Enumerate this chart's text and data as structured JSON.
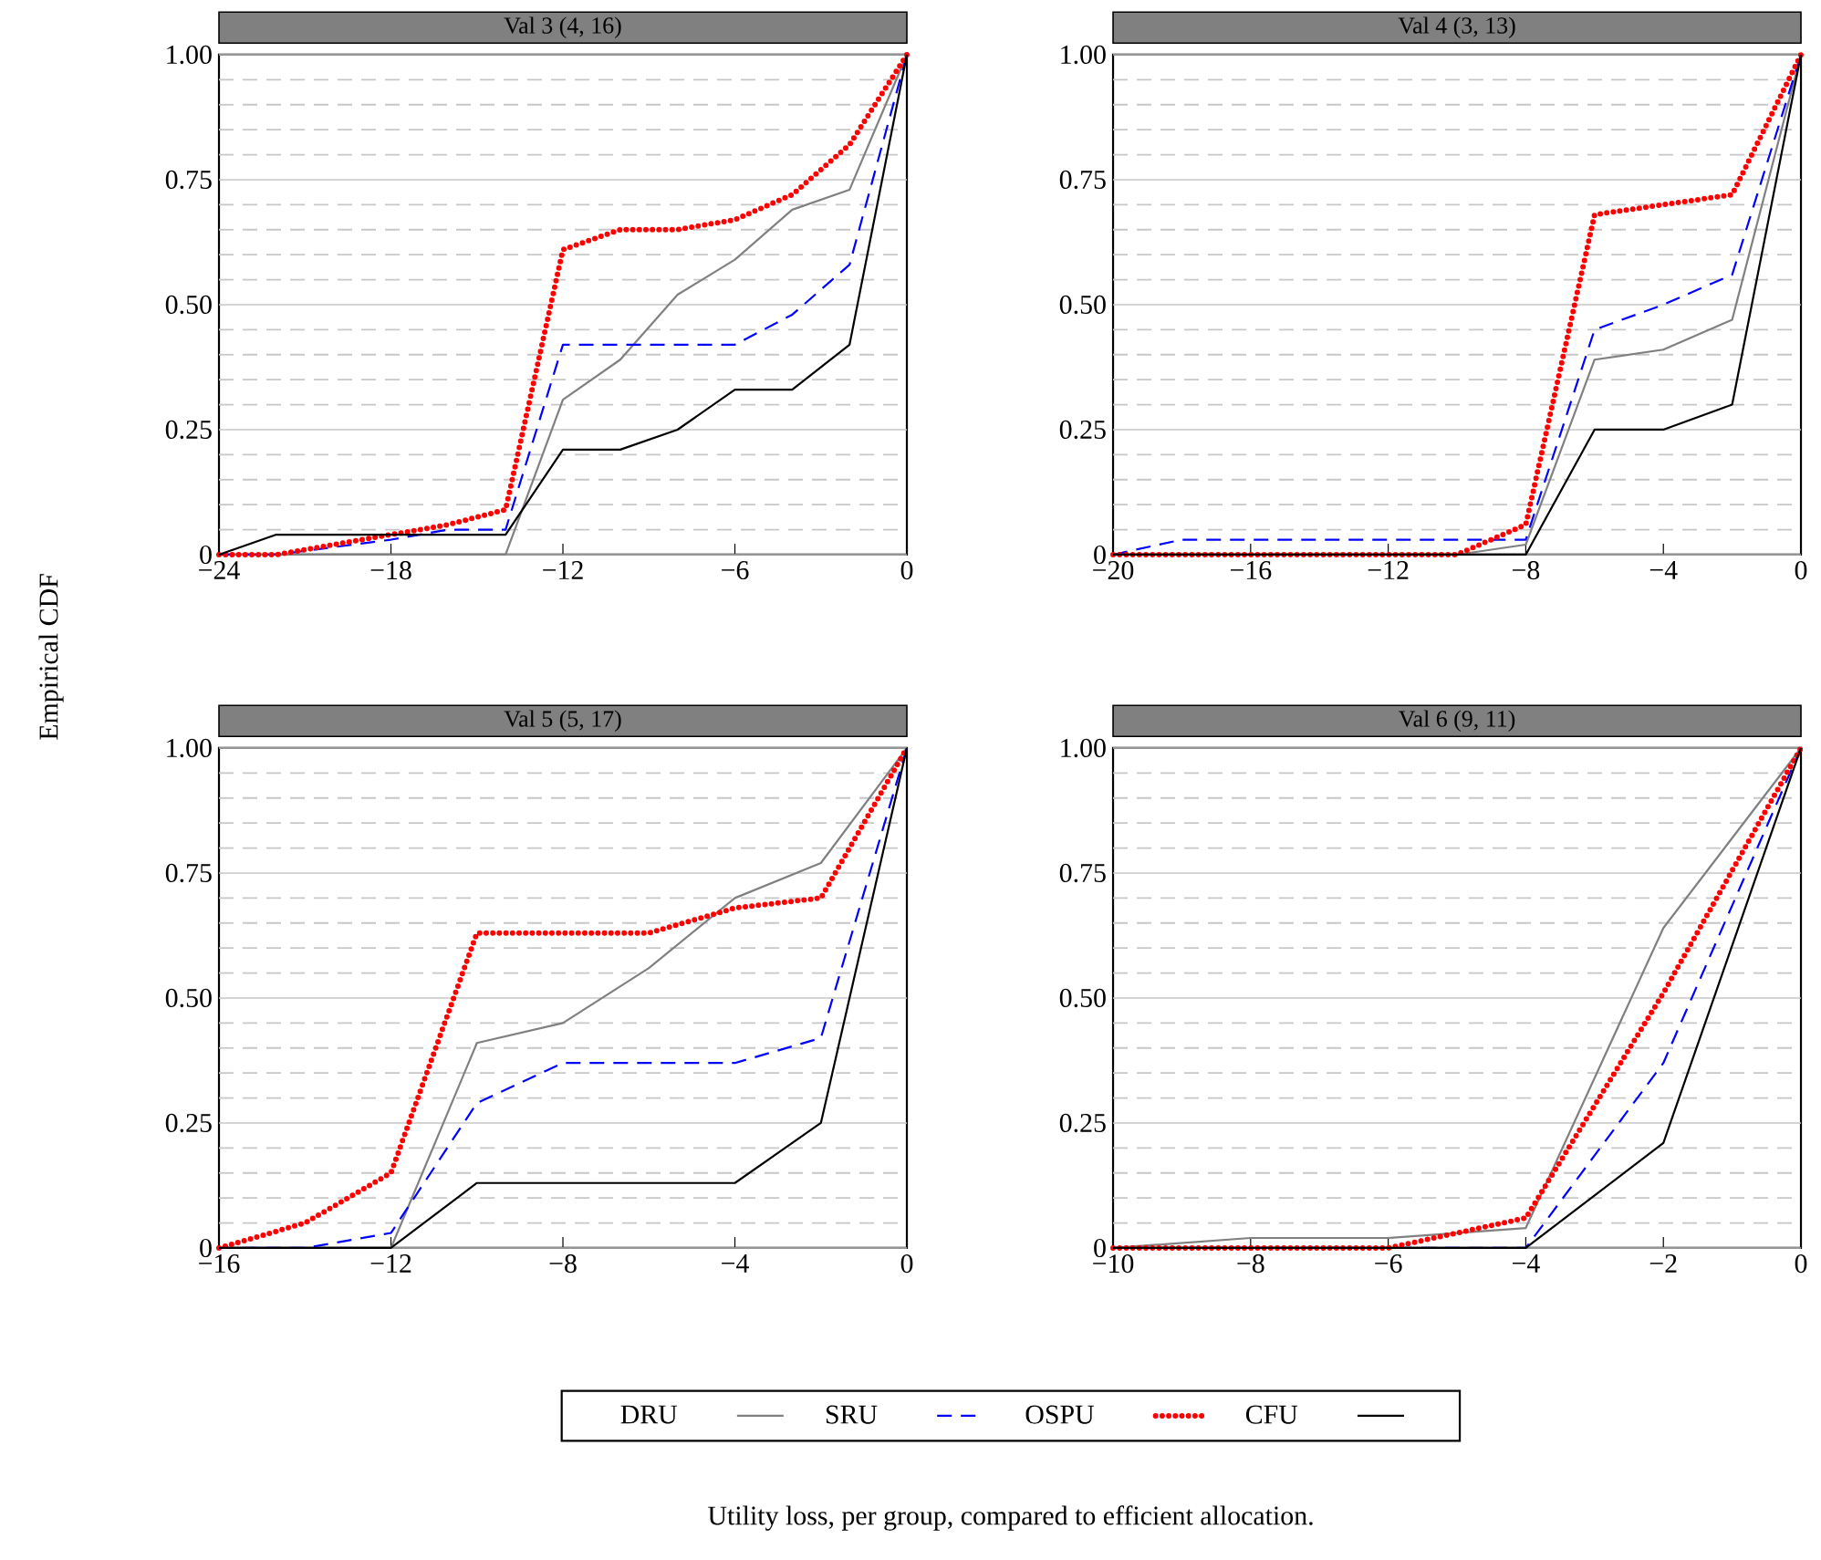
{
  "chart_data": [
    {
      "type": "line",
      "title": "Val 3 (4, 16)",
      "ylabel": "Empirical CDF",
      "xlabel": "Utility loss, per group, compared to efficient allocation.",
      "legend": "bottom",
      "grid": "y",
      "xlim": [
        -24,
        0
      ],
      "ylim": [
        0,
        1
      ],
      "xticks": [
        {
          "value": -24,
          "label": "−24"
        },
        {
          "value": -18,
          "label": "−18"
        },
        {
          "value": -12,
          "label": "−12"
        },
        {
          "value": -6,
          "label": "−6"
        },
        0
      ],
      "yticks": [
        0,
        {
          "value": 0.05,
          "label": null
        },
        {
          "value": 0.1,
          "label": null
        },
        {
          "value": 0.15,
          "label": null
        },
        {
          "value": 0.2,
          "label": null
        },
        0.25,
        {
          "value": 0.3,
          "label": null
        },
        {
          "value": 0.35,
          "label": null
        },
        {
          "value": 0.4,
          "label": null
        },
        {
          "value": 0.45,
          "label": null
        },
        {
          "value": 0.5,
          "label": "0.50"
        },
        {
          "value": 0.55,
          "label": null
        },
        {
          "value": 0.6,
          "label": null
        },
        {
          "value": 0.65,
          "label": null
        },
        {
          "value": 0.7,
          "label": null
        },
        0.75,
        {
          "value": 0.8,
          "label": null
        },
        {
          "value": 0.85,
          "label": null
        },
        {
          "value": 0.9,
          "label": null
        },
        {
          "value": 0.95,
          "label": null
        },
        {
          "value": 1,
          "label": "1.00"
        }
      ],
      "series": [
        {
          "name": "DRU",
          "color": "#808080",
          "line_style": "solid",
          "x": [
            -24,
            -14,
            -12,
            -10,
            -8,
            -6,
            -4,
            -2,
            0
          ],
          "values": [
            0,
            0,
            0.31,
            0.39,
            0.52,
            0.59,
            0.69,
            0.73,
            1
          ]
        },
        {
          "name": "SRU",
          "color": "#0000ff",
          "line_style": "dashed",
          "x": [
            -24,
            -22,
            -18,
            -16,
            -14,
            -12,
            -10,
            -8,
            -6,
            -4,
            -2,
            0
          ],
          "values": [
            0,
            0,
            0.03,
            0.05,
            0.05,
            0.42,
            0.42,
            0.42,
            0.42,
            0.48,
            0.58,
            1
          ]
        },
        {
          "name": "OSPU",
          "color": "#ff0000",
          "line_style": "dotted",
          "x": [
            -24,
            -22,
            -20,
            -18,
            -16,
            -14,
            -12,
            -10,
            -8,
            -6,
            -4,
            -2,
            0
          ],
          "values": [
            0,
            0,
            0.02,
            0.04,
            0.06,
            0.09,
            0.61,
            0.65,
            0.65,
            0.67,
            0.72,
            0.82,
            1
          ]
        },
        {
          "name": "CFU",
          "color": "#000000",
          "line_style": "solid",
          "x": [
            -24,
            -22,
            -14,
            -12,
            -10,
            -8,
            -6,
            -4,
            -2,
            0
          ],
          "values": [
            0,
            0.04,
            0.04,
            0.21,
            0.21,
            0.25,
            0.33,
            0.33,
            0.42,
            1
          ]
        }
      ]
    },
    {
      "type": "line",
      "title": "Val 4 (3, 13)",
      "grid": "y",
      "xlim": [
        -20,
        0
      ],
      "ylim": [
        0,
        1
      ],
      "xticks": [
        {
          "value": -20,
          "label": "−20"
        },
        {
          "value": -16,
          "label": "−16"
        },
        {
          "value": -12,
          "label": "−12"
        },
        {
          "value": -8,
          "label": "−8"
        },
        {
          "value": -4,
          "label": "−4"
        },
        0
      ],
      "yticks": [
        0,
        {
          "value": 0.05,
          "label": null
        },
        {
          "value": 0.1,
          "label": null
        },
        {
          "value": 0.15,
          "label": null
        },
        {
          "value": 0.2,
          "label": null
        },
        0.25,
        {
          "value": 0.3,
          "label": null
        },
        {
          "value": 0.35,
          "label": null
        },
        {
          "value": 0.4,
          "label": null
        },
        {
          "value": 0.45,
          "label": null
        },
        {
          "value": 0.5,
          "label": "0.50"
        },
        {
          "value": 0.55,
          "label": null
        },
        {
          "value": 0.6,
          "label": null
        },
        {
          "value": 0.65,
          "label": null
        },
        {
          "value": 0.7,
          "label": null
        },
        0.75,
        {
          "value": 0.8,
          "label": null
        },
        {
          "value": 0.85,
          "label": null
        },
        {
          "value": 0.9,
          "label": null
        },
        {
          "value": 0.95,
          "label": null
        },
        {
          "value": 1,
          "label": "1.00"
        }
      ],
      "series": [
        {
          "color": "#808080",
          "line_style": "solid",
          "x": [
            -20,
            -10,
            -8,
            -6,
            -4,
            -2,
            0
          ],
          "values": [
            0,
            0,
            0.02,
            0.39,
            0.41,
            0.47,
            1
          ]
        },
        {
          "color": "#0000ff",
          "line_style": "dashed",
          "x": [
            -20,
            -18,
            -8,
            -6,
            -4,
            -2,
            0
          ],
          "values": [
            0,
            0.03,
            0.03,
            0.45,
            0.5,
            0.56,
            1
          ]
        },
        {
          "color": "#ff0000",
          "line_style": "dotted",
          "x": [
            -20,
            -10,
            -8,
            -6,
            -4,
            -2,
            0
          ],
          "values": [
            0,
            0,
            0.06,
            0.68,
            0.7,
            0.72,
            1
          ]
        },
        {
          "color": "#000000",
          "line_style": "solid",
          "x": [
            -20,
            -8,
            -6,
            -4,
            -2,
            0
          ],
          "values": [
            0,
            0,
            0.25,
            0.25,
            0.3,
            1
          ]
        }
      ]
    },
    {
      "type": "line",
      "title": "Val 5 (5, 17)",
      "grid": "y",
      "xlim": [
        -16,
        0
      ],
      "ylim": [
        0,
        1
      ],
      "xticks": [
        {
          "value": -16,
          "label": "−16"
        },
        {
          "value": -12,
          "label": "−12"
        },
        {
          "value": -8,
          "label": "−8"
        },
        {
          "value": -4,
          "label": "−4"
        },
        0
      ],
      "yticks": [
        0,
        {
          "value": 0.05,
          "label": null
        },
        {
          "value": 0.1,
          "label": null
        },
        {
          "value": 0.15,
          "label": null
        },
        {
          "value": 0.2,
          "label": null
        },
        0.25,
        {
          "value": 0.3,
          "label": null
        },
        {
          "value": 0.35,
          "label": null
        },
        {
          "value": 0.4,
          "label": null
        },
        {
          "value": 0.45,
          "label": null
        },
        {
          "value": 0.5,
          "label": "0.50"
        },
        {
          "value": 0.55,
          "label": null
        },
        {
          "value": 0.6,
          "label": null
        },
        {
          "value": 0.65,
          "label": null
        },
        {
          "value": 0.7,
          "label": null
        },
        0.75,
        {
          "value": 0.8,
          "label": null
        },
        {
          "value": 0.85,
          "label": null
        },
        {
          "value": 0.9,
          "label": null
        },
        {
          "value": 0.95,
          "label": null
        },
        {
          "value": 1,
          "label": "1.00"
        }
      ],
      "series": [
        {
          "color": "#808080",
          "line_style": "solid",
          "x": [
            -16,
            -12,
            -10,
            -8,
            -6,
            -4,
            -2,
            0
          ],
          "values": [
            0,
            0,
            0.41,
            0.45,
            0.56,
            0.7,
            0.77,
            1
          ]
        },
        {
          "color": "#0000ff",
          "line_style": "dashed",
          "x": [
            -16,
            -14,
            -12,
            -10,
            -8,
            -6,
            -4,
            -2,
            0
          ],
          "values": [
            0,
            0,
            0.03,
            0.29,
            0.37,
            0.37,
            0.37,
            0.42,
            1
          ]
        },
        {
          "color": "#ff0000",
          "line_style": "dotted",
          "x": [
            -16,
            -14,
            -12,
            -10,
            -8,
            -6,
            -4,
            -2,
            0
          ],
          "values": [
            0,
            0.05,
            0.15,
            0.63,
            0.63,
            0.63,
            0.68,
            0.7,
            1
          ]
        },
        {
          "color": "#000000",
          "line_style": "solid",
          "x": [
            -16,
            -12,
            -10,
            -8,
            -6,
            -4,
            -2,
            0
          ],
          "values": [
            0,
            0,
            0.13,
            0.13,
            0.13,
            0.13,
            0.25,
            1
          ]
        }
      ]
    },
    {
      "type": "line",
      "title": "Val 6 (9, 11)",
      "grid": "y",
      "xlim": [
        -10,
        0
      ],
      "ylim": [
        0,
        1
      ],
      "xticks": [
        {
          "value": -10,
          "label": "−10"
        },
        {
          "value": -8,
          "label": "−8"
        },
        {
          "value": -6,
          "label": "−6"
        },
        {
          "value": -4,
          "label": "−4"
        },
        {
          "value": -2,
          "label": "−2"
        },
        0
      ],
      "yticks": [
        0,
        {
          "value": 0.05,
          "label": null
        },
        {
          "value": 0.1,
          "label": null
        },
        {
          "value": 0.15,
          "label": null
        },
        {
          "value": 0.2,
          "label": null
        },
        0.25,
        {
          "value": 0.3,
          "label": null
        },
        {
          "value": 0.35,
          "label": null
        },
        {
          "value": 0.4,
          "label": null
        },
        {
          "value": 0.45,
          "label": null
        },
        {
          "value": 0.5,
          "label": "0.50"
        },
        {
          "value": 0.55,
          "label": null
        },
        {
          "value": 0.6,
          "label": null
        },
        {
          "value": 0.65,
          "label": null
        },
        {
          "value": 0.7,
          "label": null
        },
        0.75,
        {
          "value": 0.8,
          "label": null
        },
        {
          "value": 0.85,
          "label": null
        },
        {
          "value": 0.9,
          "label": null
        },
        {
          "value": 0.95,
          "label": null
        },
        {
          "value": 1,
          "label": "1.00"
        }
      ],
      "series": [
        {
          "color": "#808080",
          "line_style": "solid",
          "x": [
            -10,
            -8,
            -6,
            -4,
            -2,
            0
          ],
          "values": [
            0,
            0.02,
            0.02,
            0.04,
            0.64,
            1
          ]
        },
        {
          "color": "#0000ff",
          "line_style": "dashed",
          "x": [
            -10,
            -4,
            -2,
            0
          ],
          "values": [
            0,
            0,
            0.37,
            1
          ]
        },
        {
          "color": "#ff0000",
          "line_style": "dotted",
          "x": [
            -10,
            -8,
            -6,
            -4,
            -2,
            0
          ],
          "values": [
            0,
            0,
            0,
            0.06,
            0.51,
            1
          ]
        },
        {
          "color": "#000000",
          "line_style": "solid",
          "x": [
            -10,
            -4,
            -2,
            0
          ],
          "values": [
            0,
            0,
            0.21,
            1
          ]
        }
      ]
    }
  ]
}
